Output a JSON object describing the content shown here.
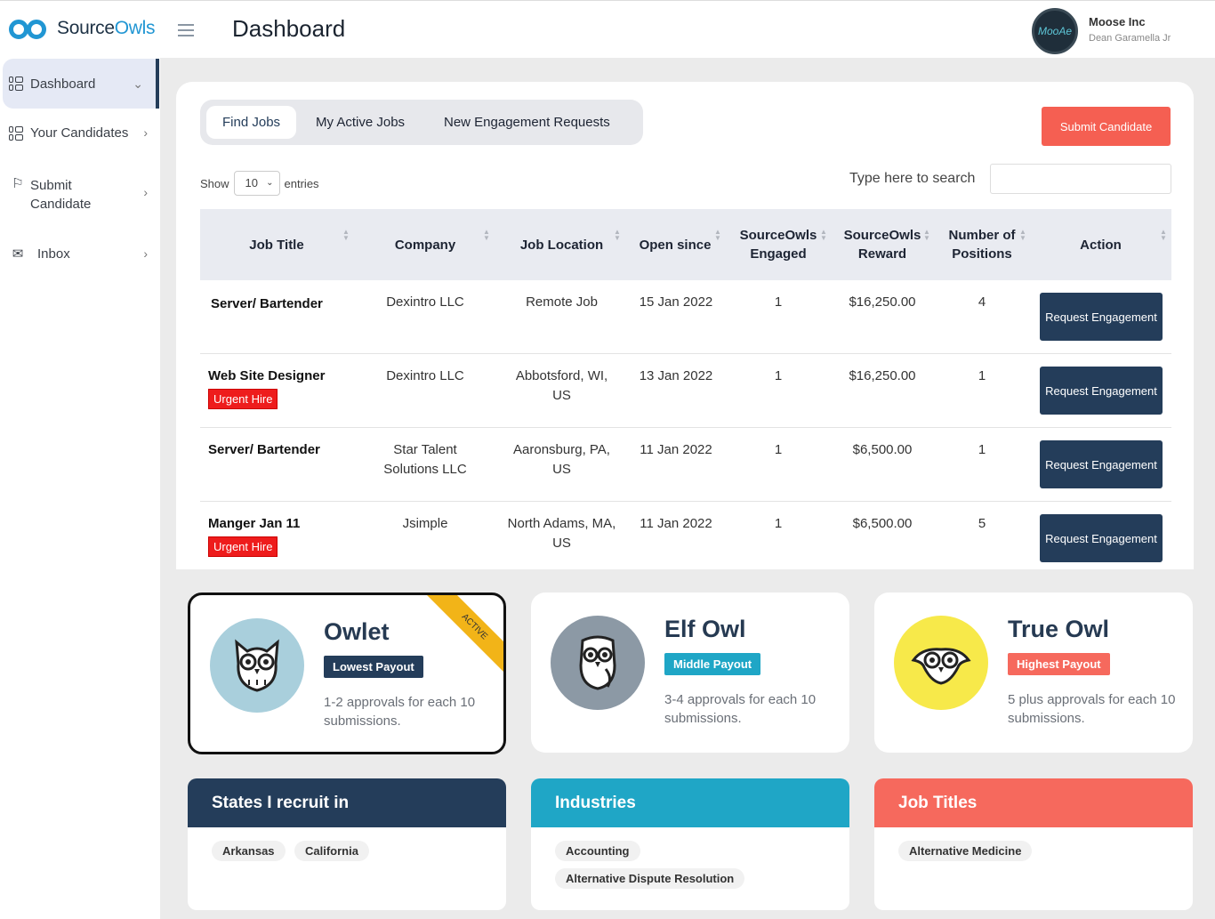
{
  "header": {
    "brand_dark": "Source",
    "brand_light": "Owls",
    "page_title": "Dashboard",
    "user_name": "Moose Inc",
    "user_sub": "Dean Garamella Jr",
    "avatar_text": "MooAe"
  },
  "sidebar": {
    "items": [
      {
        "label": "Dashboard",
        "icon": "dashboard-icon"
      },
      {
        "label": "Your Candidates",
        "icon": "candidates-icon"
      },
      {
        "label": "Submit Candidate",
        "icon": "flag-icon"
      },
      {
        "label": "Inbox",
        "icon": "mail-icon"
      }
    ]
  },
  "tabs": [
    "Find Jobs",
    "My Active Jobs",
    "New Engagement Requests"
  ],
  "submit_button": "Submit Candidate",
  "table_controls": {
    "show": "Show",
    "entries_value": "10",
    "entries": "entries",
    "search_label": "Type here to search"
  },
  "columns": [
    "Job Title",
    "Company",
    "Job Location",
    "Open since",
    "SourceOwls Engaged",
    "SourceOwls Reward",
    "Number of Positions",
    "Action"
  ],
  "rows": [
    {
      "title": "Server/ Bartender",
      "urgent": "",
      "company": "Dexintro LLC",
      "location": "Remote Job",
      "open": "15 Jan 2022",
      "engaged": "1",
      "reward": "$16,250.00",
      "positions": "4",
      "action": "Request Engagement"
    },
    {
      "title": "Web Site Designer",
      "urgent": "Urgent Hire",
      "company": "Dexintro LLC",
      "location": "Abbotsford, WI, US",
      "open": "13 Jan 2022",
      "engaged": "1",
      "reward": "$16,250.00",
      "positions": "1",
      "action": "Request Engagement"
    },
    {
      "title": "Server/ Bartender",
      "urgent": "",
      "company": "Star Talent Solutions LLC",
      "location": "Aaronsburg, PA, US",
      "open": "11 Jan 2022",
      "engaged": "1",
      "reward": "$6,500.00",
      "positions": "1",
      "action": "Request Engagement"
    },
    {
      "title": "Manger Jan 11",
      "urgent": "Urgent Hire",
      "company": "Jsimple",
      "location": "North Adams, MA, US",
      "open": "11 Jan 2022",
      "engaged": "1",
      "reward": "$6,500.00",
      "positions": "5",
      "action": "Request Engagement"
    }
  ],
  "tiers": [
    {
      "name": "Owlet",
      "badge": "Lowest Payout",
      "badge_color": "#243d5a",
      "circle_color": "#a9cfdc",
      "desc": "1-2 approvals for each 10 submissions.",
      "ribbon": "ACTIVE"
    },
    {
      "name": "Elf Owl",
      "badge": "Middle Payout",
      "badge_color": "#1fa6c6",
      "circle_color": "#8c99a5",
      "desc": "3-4 approvals for each 10 submissions."
    },
    {
      "name": "True Owl",
      "badge": "Highest Payout",
      "badge_color": "#f6695d",
      "circle_color": "#f7e94a",
      "desc": "5 plus approvals for each 10 submissions."
    }
  ],
  "panels": [
    {
      "title": "States I recruit in",
      "color": "#243d5a",
      "chips": [
        "Arkansas",
        "California"
      ]
    },
    {
      "title": "Industries",
      "color": "#1fa6c6",
      "chips": [
        "Accounting",
        "Alternative Dispute Resolution"
      ]
    },
    {
      "title": "Job Titles",
      "color": "#f6695d",
      "chips": [
        "Alternative Medicine"
      ]
    }
  ]
}
